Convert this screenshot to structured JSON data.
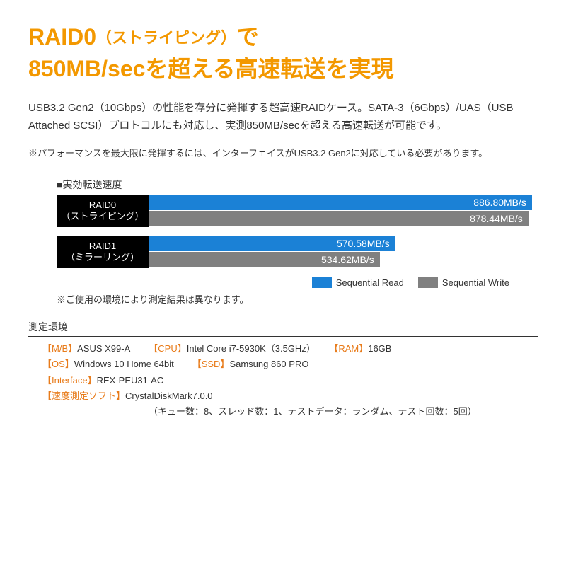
{
  "headline": {
    "l1a": "RAID0",
    "l1b": "（ストライピング）",
    "l1c": "で",
    "l2": "850MB/secを超える高速転送を実現"
  },
  "body": "USB3.2 Gen2（10Gbps）の性能を存分に発揮する超高速RAIDケース。SATA-3（6Gbps）/UAS（USB Attached SCSI）プロトコルにも対応し、実測850MB/secを超える高速転送が可能です。",
  "note": "※パフォーマンスを最大限に発揮するには、インターフェイスがUSB3.2 Gen2に対応している必要があります。",
  "chart": {
    "title": "■実効転送速度",
    "max": 900,
    "colors": {
      "read": "#1b81d6",
      "write": "#808080",
      "label_bg": "#000000"
    },
    "rows": [
      {
        "label1": "RAID0",
        "label2": "（ストライピング）",
        "read_val": 886.8,
        "read_text": "886.80MB/s",
        "write_val": 878.44,
        "write_text": "878.44MB/s"
      },
      {
        "label1": "RAID1",
        "label2": "（ミラーリング）",
        "read_val": 570.58,
        "read_text": "570.58MB/s",
        "write_val": 534.62,
        "write_text": "534.62MB/s"
      }
    ],
    "legend": {
      "read": "Sequential Read",
      "write": "Sequential Write"
    },
    "note": "※ご使用の環境により測定結果は異なります。"
  },
  "env": {
    "title": "測定環境",
    "items": [
      {
        "k": "【M/B】",
        "v": "ASUS X99-A"
      },
      {
        "k": "【CPU】",
        "v": "Intel Core i7-5930K（3.5GHz）"
      },
      {
        "k": "【RAM】",
        "v": "16GB"
      },
      {
        "k": "【OS】",
        "v": "Windows 10 Home 64bit"
      },
      {
        "k": "【SSD】",
        "v": "Samsung 860 PRO"
      },
      {
        "k": "【Interface】",
        "v": "REX-PEU31-AC"
      },
      {
        "k": "【速度測定ソフト】",
        "v": "CrystalDiskMark7.0.0"
      }
    ],
    "params": "（キュー数：8、スレッド数：1、テストデータ：ランダム、テスト回数：5回）"
  }
}
